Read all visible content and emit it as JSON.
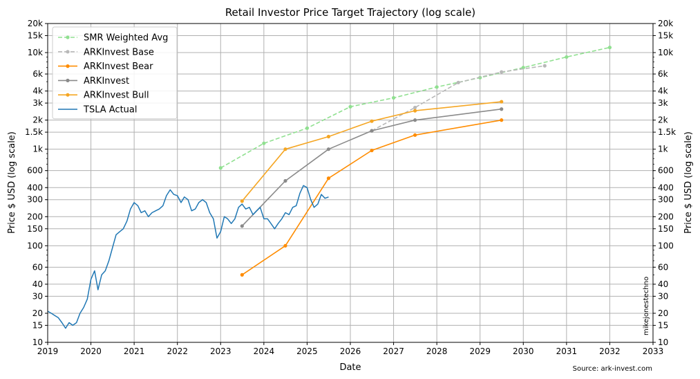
{
  "chart_data": {
    "type": "line",
    "title": "Retail Investor Price Target Trajectory (log scale)",
    "xlabel": "Date",
    "ylabel": "Price $ USD (log scale)",
    "ylabel_right": "Price $ USD (log scale)",
    "yscale": "log",
    "xlim": [
      2019,
      2033
    ],
    "ylim": [
      10,
      20000
    ],
    "grid": true,
    "legend": "top-left",
    "x_ticks": [
      "2019",
      "2020",
      "2021",
      "2022",
      "2023",
      "2024",
      "2025",
      "2026",
      "2027",
      "2028",
      "2029",
      "2030",
      "2031",
      "2032",
      "2033"
    ],
    "y_ticks": [
      {
        "value": 10,
        "label": "10"
      },
      {
        "value": 15,
        "label": "15"
      },
      {
        "value": 20,
        "label": "20"
      },
      {
        "value": 30,
        "label": "30"
      },
      {
        "value": 40,
        "label": "40"
      },
      {
        "value": 60,
        "label": "60"
      },
      {
        "value": 100,
        "label": "100"
      },
      {
        "value": 150,
        "label": "150"
      },
      {
        "value": 200,
        "label": "200"
      },
      {
        "value": 300,
        "label": "300"
      },
      {
        "value": 400,
        "label": "400"
      },
      {
        "value": 600,
        "label": "600"
      },
      {
        "value": 1000,
        "label": "1k"
      },
      {
        "value": 1500,
        "label": "1.5k"
      },
      {
        "value": 2000,
        "label": "2k"
      },
      {
        "value": 3000,
        "label": "3k"
      },
      {
        "value": 4000,
        "label": "4k"
      },
      {
        "value": 6000,
        "label": "6k"
      },
      {
        "value": 10000,
        "label": "10k"
      },
      {
        "value": 15000,
        "label": "15k"
      },
      {
        "value": 20000,
        "label": "20k"
      }
    ],
    "series": [
      {
        "name": "SMR Weighted Avg",
        "color": "#90e090",
        "dash": true,
        "marker": true,
        "x": [
          "2023-01-01",
          "2024-01-01",
          "2025-01-01",
          "2026-01-01",
          "2027-01-01",
          "2028-01-01",
          "2029-01-01",
          "2030-01-01",
          "2031-01-01",
          "2032-01-01"
        ],
        "y": [
          640,
          1150,
          1650,
          2750,
          3400,
          4400,
          5500,
          7000,
          9000,
          11300
        ]
      },
      {
        "name": "ARKInvest Base",
        "color": "#b8b8b8",
        "dash": true,
        "marker": true,
        "x": [
          "2026-07-01",
          "2027-07-01",
          "2028-07-01",
          "2029-07-01",
          "2030-07-01"
        ],
        "y": [
          1550,
          2700,
          4900,
          6300,
          7300
        ]
      },
      {
        "name": "ARKInvest Bear",
        "color": "#ff8c00",
        "dash": false,
        "marker": true,
        "x": [
          "2023-07-01",
          "2024-07-01",
          "2025-07-01",
          "2026-07-01",
          "2027-07-01",
          "2029-07-01"
        ],
        "y": [
          50,
          100,
          500,
          970,
          1400,
          2000
        ]
      },
      {
        "name": "ARKInvest",
        "color": "#8a8a8a",
        "dash": false,
        "marker": true,
        "x": [
          "2023-07-01",
          "2024-07-01",
          "2025-07-01",
          "2026-07-01",
          "2027-07-01",
          "2029-07-01"
        ],
        "y": [
          160,
          470,
          1000,
          1550,
          2000,
          2600
        ]
      },
      {
        "name": "ARKInvest Bull",
        "color": "#f5a623",
        "dash": false,
        "marker": true,
        "x": [
          "2023-07-01",
          "2024-07-01",
          "2025-07-01",
          "2026-07-01",
          "2027-07-01",
          "2029-07-01"
        ],
        "y": [
          290,
          1000,
          1350,
          1950,
          2500,
          3100
        ]
      },
      {
        "name": "TSLA Actual",
        "color": "#1f77b4",
        "dash": false,
        "marker": false,
        "x": [
          "2019-01-01",
          "2019-02-01",
          "2019-03-01",
          "2019-04-01",
          "2019-05-01",
          "2019-06-01",
          "2019-07-01",
          "2019-08-01",
          "2019-09-01",
          "2019-10-01",
          "2019-11-01",
          "2019-12-01",
          "2020-01-01",
          "2020-02-01",
          "2020-03-01",
          "2020-04-01",
          "2020-05-01",
          "2020-06-01",
          "2020-07-01",
          "2020-08-01",
          "2020-09-01",
          "2020-10-01",
          "2020-11-01",
          "2020-12-01",
          "2021-01-01",
          "2021-02-01",
          "2021-03-01",
          "2021-04-01",
          "2021-05-01",
          "2021-06-01",
          "2021-07-01",
          "2021-08-01",
          "2021-09-01",
          "2021-10-01",
          "2021-11-01",
          "2021-12-01",
          "2022-01-01",
          "2022-02-01",
          "2022-03-01",
          "2022-04-01",
          "2022-05-01",
          "2022-06-01",
          "2022-07-01",
          "2022-08-01",
          "2022-09-01",
          "2022-10-01",
          "2022-11-01",
          "2022-12-01",
          "2023-01-01",
          "2023-02-01",
          "2023-03-01",
          "2023-04-01",
          "2023-05-01",
          "2023-06-01",
          "2023-07-01",
          "2023-08-01",
          "2023-09-01",
          "2023-10-01",
          "2023-11-01",
          "2023-12-01",
          "2024-01-01",
          "2024-02-01",
          "2024-03-01",
          "2024-04-01",
          "2024-05-01",
          "2024-06-01",
          "2024-07-01",
          "2024-08-01",
          "2024-09-01",
          "2024-10-01",
          "2024-11-01",
          "2024-12-01",
          "2025-01-01",
          "2025-02-01",
          "2025-03-01",
          "2025-04-01",
          "2025-05-01",
          "2025-06-01",
          "2025-07-01"
        ],
        "y": [
          21,
          20,
          19,
          18,
          16,
          14,
          16,
          15,
          16,
          20,
          23,
          28,
          45,
          55,
          35,
          50,
          55,
          70,
          95,
          130,
          140,
          150,
          180,
          240,
          280,
          260,
          220,
          230,
          200,
          220,
          230,
          240,
          260,
          330,
          380,
          340,
          330,
          280,
          320,
          300,
          230,
          240,
          280,
          300,
          280,
          220,
          190,
          120,
          140,
          200,
          190,
          170,
          190,
          250,
          270,
          240,
          250,
          210,
          230,
          250,
          190,
          190,
          170,
          150,
          170,
          190,
          220,
          210,
          250,
          260,
          350,
          420,
          400,
          300,
          250,
          270,
          340,
          310,
          320
        ]
      }
    ],
    "annotations": [
      {
        "text": "mikejonestechno"
      },
      {
        "text": "Source: ark-invest.com"
      }
    ]
  }
}
